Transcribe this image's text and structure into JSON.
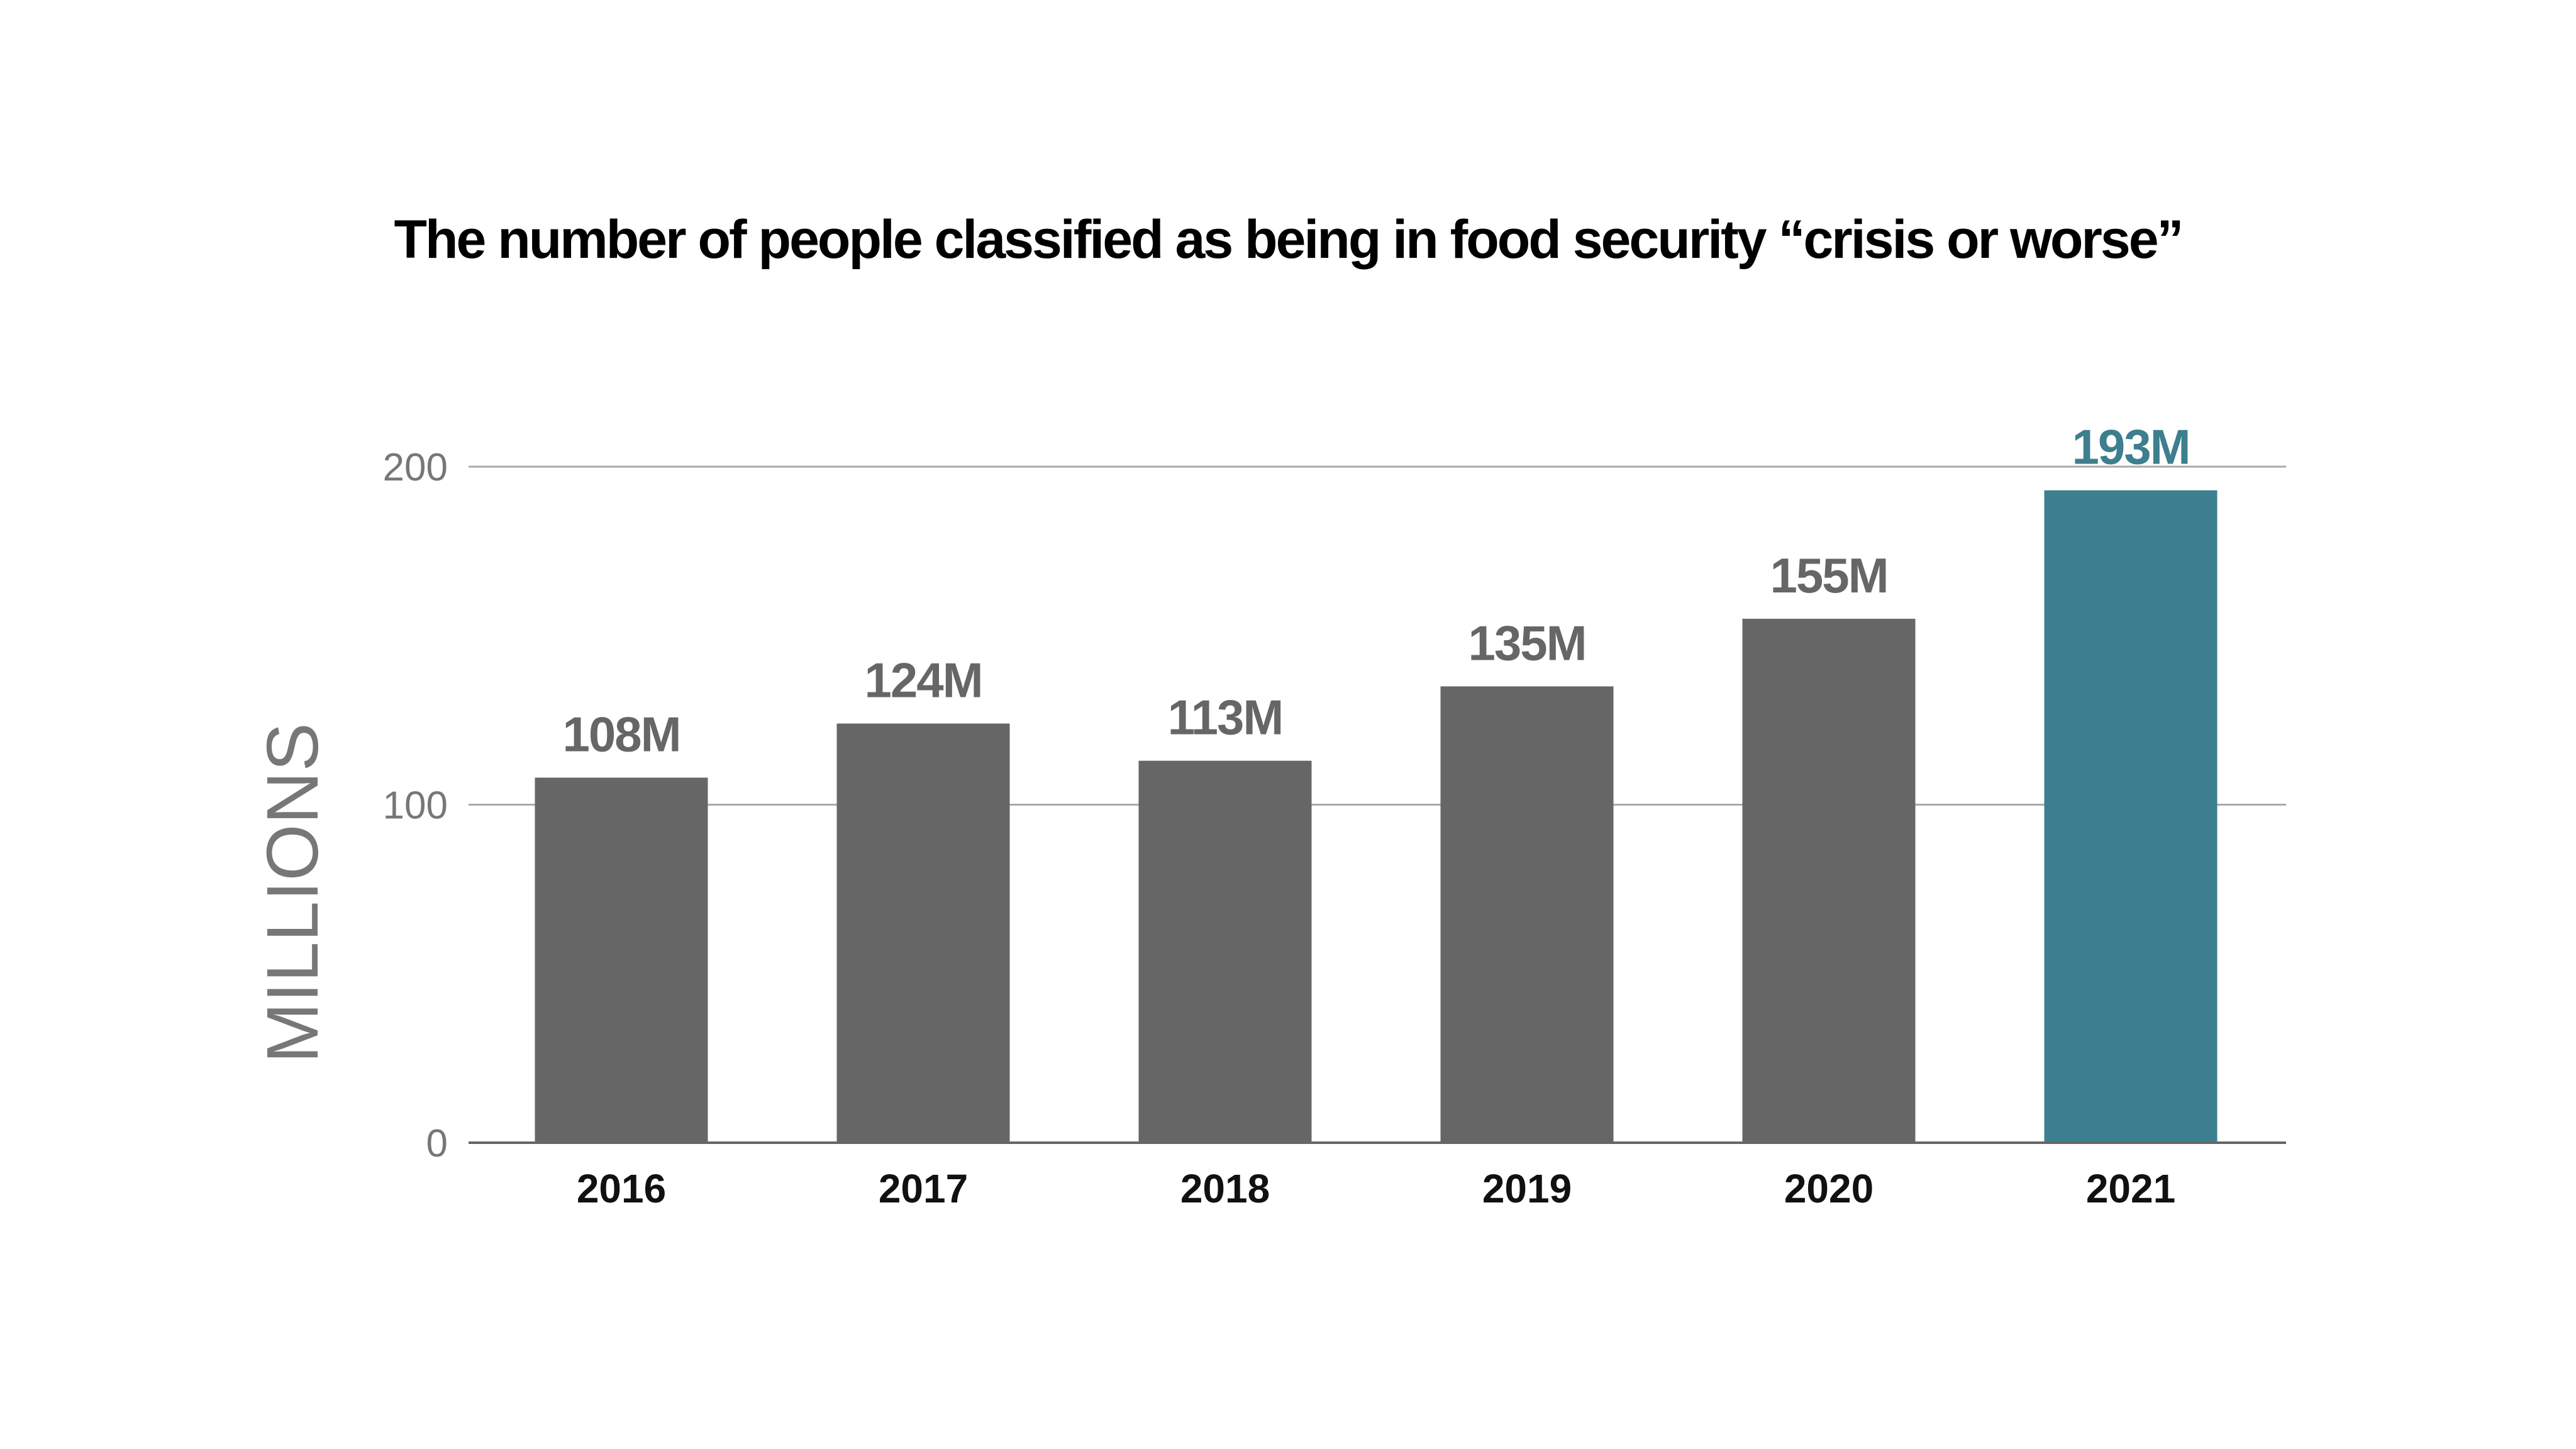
{
  "chart_data": {
    "type": "bar",
    "title": "The number of people classified as being in food security “crisis or worse”",
    "ylabel": "MILLIONS",
    "xlabel": "",
    "categories": [
      "2016",
      "2017",
      "2018",
      "2019",
      "2020",
      "2021"
    ],
    "values": [
      108,
      124,
      113,
      135,
      155,
      193
    ],
    "value_labels": [
      "108M",
      "124M",
      "113M",
      "135M",
      "155M",
      "193M"
    ],
    "highlight_index": 5,
    "ylim": [
      0,
      200
    ],
    "yticks": [
      0,
      100,
      200
    ],
    "ytick_labels": [
      "0",
      "100",
      "200"
    ],
    "grid": true,
    "legend": "none"
  },
  "colors": {
    "bar": "#666666",
    "highlight": "#3d7f8e",
    "title": "#000000",
    "tick_text": "#777777",
    "axis_label": "#777777",
    "grid": "#aaaaaa",
    "axis": "#666666",
    "year_text": "#111111"
  }
}
